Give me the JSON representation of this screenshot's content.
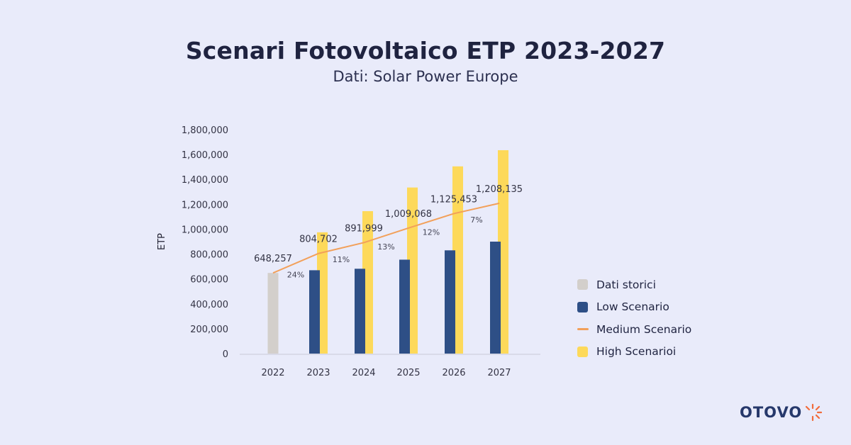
{
  "title": "Scenari Fotovoltaico ETP 2023-2027",
  "subtitle": "Dati: Solar Power Europe",
  "brand": {
    "name": "OTOVO",
    "icon": "sun-burst-icon",
    "color": "#26386b",
    "accent": "#f26b3a"
  },
  "colors": {
    "historic": "#d3cfcb",
    "low": "#2e4f86",
    "medium": "#f2a05a",
    "high": "#fdd95a"
  },
  "chart_data": {
    "type": "bar",
    "categories": [
      "2022",
      "2023",
      "2024",
      "2025",
      "2026",
      "2027"
    ],
    "ylabel": "ETP",
    "ylim": [
      0,
      1800000
    ],
    "yticks": [
      "0",
      "200,000",
      "400,000",
      "600,000",
      "800,000",
      "1,000,000",
      "1,200,000",
      "1,400,000",
      "1,600,000",
      "1,800,000"
    ],
    "grid": false,
    "legend_position": "right",
    "series": [
      {
        "name": "Dati storici",
        "kind": "bar",
        "values": [
          648257,
          null,
          null,
          null,
          null,
          null
        ]
      },
      {
        "name": "Low Scenario",
        "kind": "bar",
        "values": [
          null,
          670000,
          682000,
          755000,
          830000,
          900000
        ]
      },
      {
        "name": "Medium Scenario",
        "kind": "line",
        "values": [
          648257,
          804702,
          891999,
          1009068,
          1125453,
          1208135
        ],
        "labels": [
          "648,257",
          "804,702",
          "891,999",
          "1,009,068",
          "1,125,453",
          "1,208,135"
        ]
      },
      {
        "name": "High Scenarioi",
        "kind": "bar",
        "values": [
          null,
          975000,
          1145000,
          1335000,
          1505000,
          1635000
        ]
      }
    ],
    "growth_labels": [
      "24%",
      "11%",
      "13%",
      "12%",
      "7%"
    ]
  },
  "legend": [
    {
      "label": "Dati storici",
      "type": "box",
      "color": "#d3cfcb"
    },
    {
      "label": "Low Scenario",
      "type": "box",
      "color": "#2e4f86"
    },
    {
      "label": "Medium Scenario",
      "type": "line",
      "color": "#f2a05a"
    },
    {
      "label": "High Scenarioi",
      "type": "box",
      "color": "#fdd95a"
    }
  ]
}
